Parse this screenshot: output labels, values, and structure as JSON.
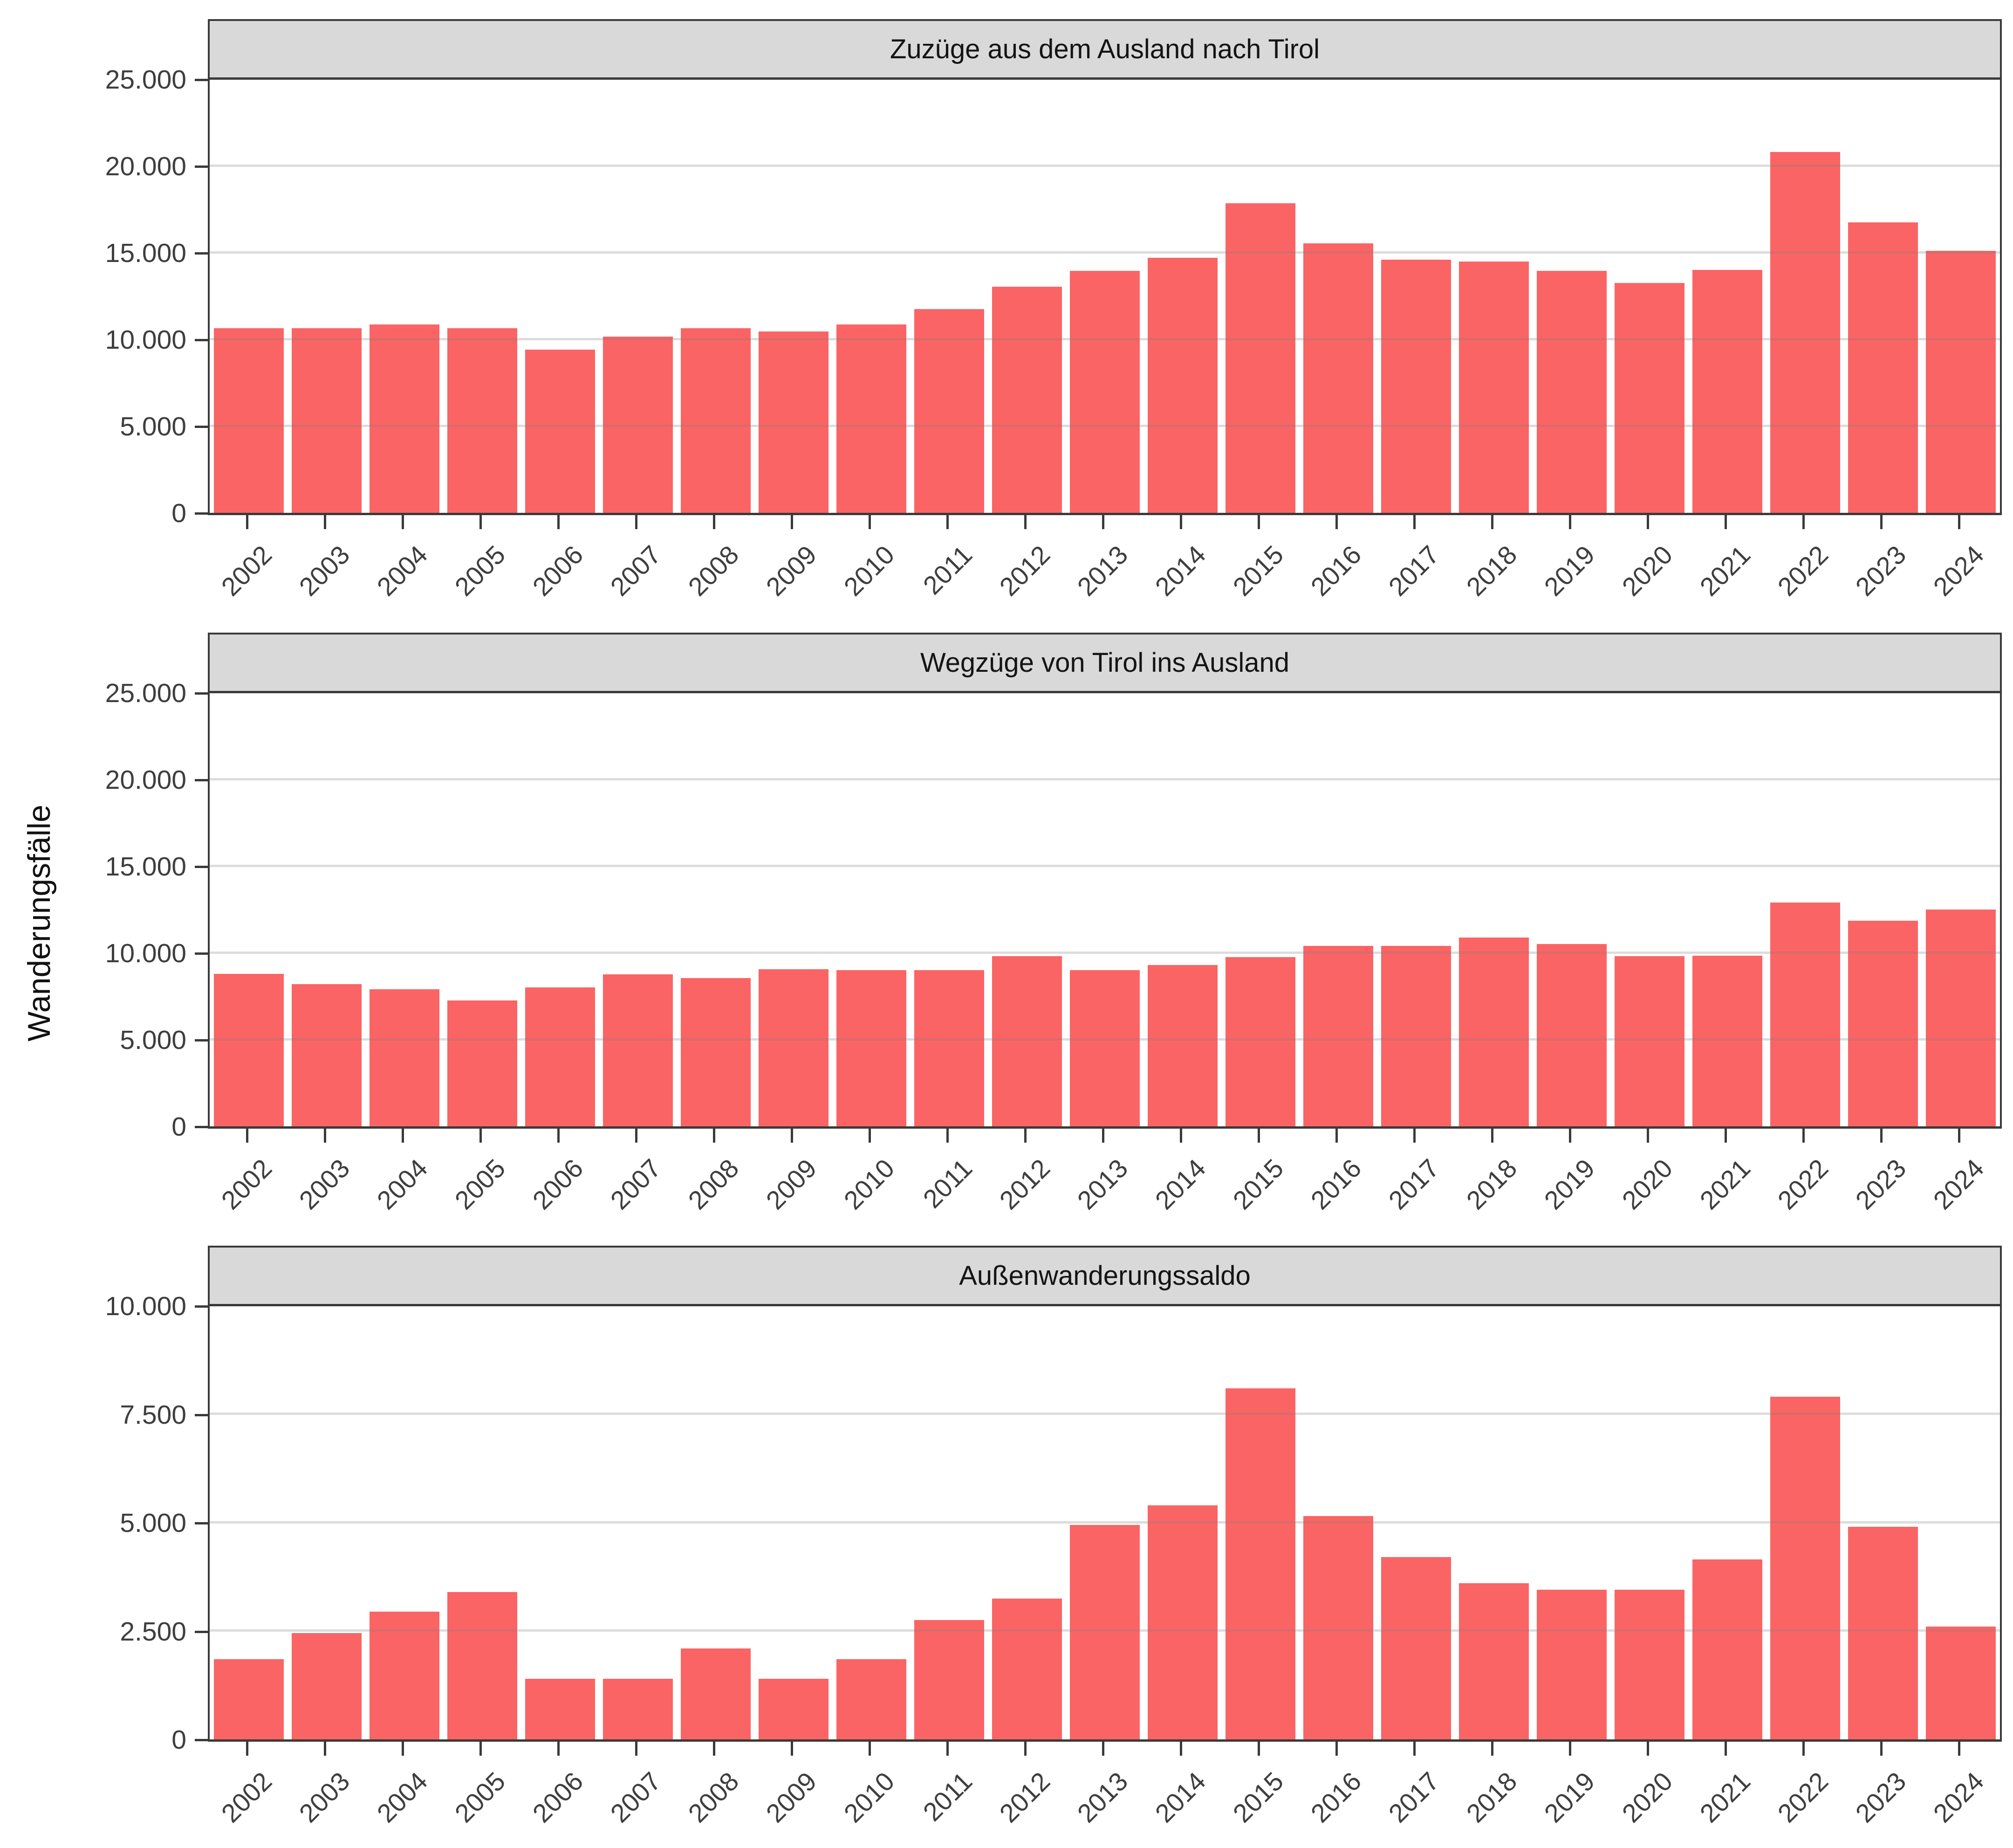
{
  "figure": {
    "y_axis_label": "Wanderungsfälle",
    "bar_color": "#FB6464",
    "strip_color": "#D9D9D9",
    "axis_color": "#3A3A3A",
    "gridline_color": "#DCDCDC"
  },
  "chart_data": [
    {
      "type": "bar",
      "title": "Zuzüge aus dem Ausland nach Tirol",
      "categories": [
        "2002",
        "2003",
        "2004",
        "2005",
        "2006",
        "2007",
        "2008",
        "2009",
        "2010",
        "2011",
        "2012",
        "2013",
        "2014",
        "2015",
        "2016",
        "2017",
        "2018",
        "2019",
        "2020",
        "2021",
        "2022",
        "2023",
        "2024"
      ],
      "values": [
        10650,
        10650,
        10850,
        10650,
        9400,
        10150,
        10650,
        10450,
        10850,
        11750,
        13050,
        13950,
        14700,
        17850,
        15550,
        14600,
        14500,
        13950,
        13250,
        14000,
        20800,
        16750,
        15100
      ],
      "xlabel": "",
      "ylabel": "Wanderungsfälle",
      "ylim": [
        0,
        25000
      ],
      "yticks": [
        0,
        5000,
        10000,
        15000,
        20000,
        25000
      ],
      "ytick_labels": [
        "0",
        "5.000",
        "10.000",
        "15.000",
        "20.000",
        "25.000"
      ],
      "grid": "horizontal-light",
      "x_label_rotation": 45,
      "legend": "none"
    },
    {
      "type": "bar",
      "title": "Wegzüge von Tirol ins Ausland",
      "categories": [
        "2002",
        "2003",
        "2004",
        "2005",
        "2006",
        "2007",
        "2008",
        "2009",
        "2010",
        "2011",
        "2012",
        "2013",
        "2014",
        "2015",
        "2016",
        "2017",
        "2018",
        "2019",
        "2020",
        "2021",
        "2022",
        "2023",
        "2024"
      ],
      "values": [
        8800,
        8200,
        7900,
        7250,
        8000,
        8750,
        8550,
        9050,
        9000,
        9000,
        9800,
        9000,
        9300,
        9750,
        10400,
        10400,
        10900,
        10500,
        9800,
        9850,
        12900,
        11850,
        12500
      ],
      "xlabel": "",
      "ylabel": "Wanderungsfälle",
      "ylim": [
        0,
        25000
      ],
      "yticks": [
        0,
        5000,
        10000,
        15000,
        20000,
        25000
      ],
      "ytick_labels": [
        "0",
        "5.000",
        "10.000",
        "15.000",
        "20.000",
        "25.000"
      ],
      "grid": "horizontal-light",
      "x_label_rotation": 45,
      "legend": "none"
    },
    {
      "type": "bar",
      "title": "Außenwanderungssaldo",
      "categories": [
        "2002",
        "2003",
        "2004",
        "2005",
        "2006",
        "2007",
        "2008",
        "2009",
        "2010",
        "2011",
        "2012",
        "2013",
        "2014",
        "2015",
        "2016",
        "2017",
        "2018",
        "2019",
        "2020",
        "2021",
        "2022",
        "2023",
        "2024"
      ],
      "values": [
        1850,
        2450,
        2950,
        3400,
        1400,
        1400,
        2100,
        1400,
        1850,
        2750,
        3250,
        4950,
        5400,
        8100,
        5150,
        4200,
        3600,
        3450,
        3450,
        4150,
        7900,
        4900,
        2600
      ],
      "xlabel": "",
      "ylabel": "Wanderungsfälle",
      "ylim": [
        0,
        10000
      ],
      "yticks": [
        0,
        2500,
        5000,
        7500,
        10000
      ],
      "ytick_labels": [
        "0",
        "2.500",
        "5.000",
        "7.500",
        "10.000"
      ],
      "grid": "horizontal-light",
      "x_label_rotation": 45,
      "legend": "none"
    }
  ]
}
